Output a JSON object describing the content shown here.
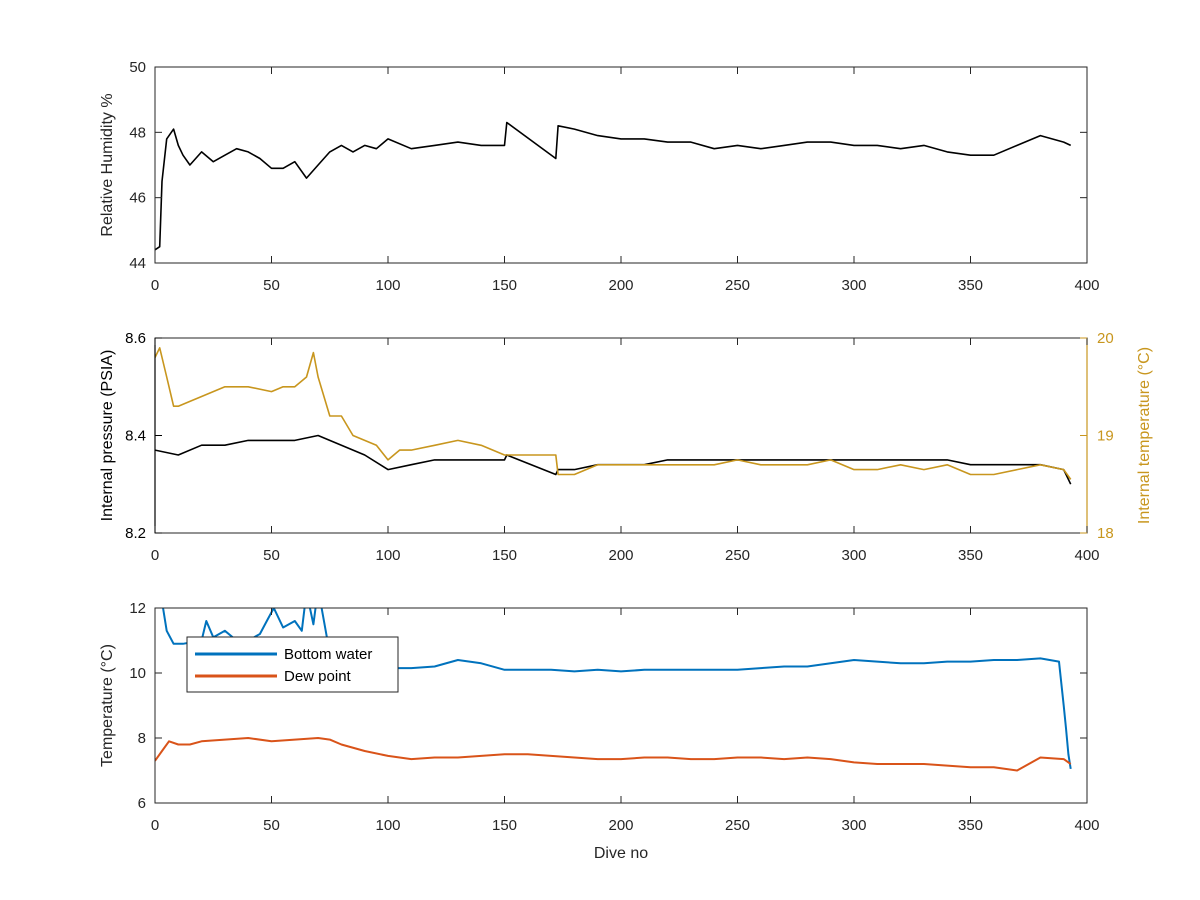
{
  "chart_data": [
    {
      "type": "line",
      "panel": "top",
      "ylabel": "Relative Humidity %",
      "xlim": [
        0,
        400
      ],
      "ylim": [
        44,
        50
      ],
      "xticks": [
        0,
        50,
        100,
        150,
        200,
        250,
        300,
        350,
        400
      ],
      "yticks": [
        44,
        46,
        48,
        50
      ],
      "grid": false,
      "series": [
        {
          "color": "#000000",
          "x": [
            0,
            2,
            3,
            5,
            8,
            10,
            12,
            15,
            20,
            25,
            30,
            35,
            40,
            45,
            50,
            55,
            60,
            65,
            70,
            75,
            80,
            85,
            90,
            95,
            100,
            110,
            120,
            130,
            140,
            150,
            151,
            172,
            173,
            180,
            190,
            200,
            210,
            220,
            230,
            240,
            250,
            260,
            270,
            280,
            290,
            300,
            310,
            320,
            330,
            340,
            350,
            360,
            370,
            380,
            390,
            393
          ],
          "y": [
            44.4,
            44.5,
            46.5,
            47.8,
            48.1,
            47.6,
            47.3,
            47.0,
            47.4,
            47.1,
            47.3,
            47.5,
            47.4,
            47.2,
            46.9,
            46.9,
            47.1,
            46.6,
            47.0,
            47.4,
            47.6,
            47.4,
            47.6,
            47.5,
            47.8,
            47.5,
            47.6,
            47.7,
            47.6,
            47.6,
            48.3,
            47.2,
            48.2,
            48.1,
            47.9,
            47.8,
            47.8,
            47.7,
            47.7,
            47.5,
            47.6,
            47.5,
            47.6,
            47.7,
            47.7,
            47.6,
            47.6,
            47.5,
            47.6,
            47.4,
            47.3,
            47.3,
            47.6,
            47.9,
            47.7,
            47.6
          ]
        }
      ]
    },
    {
      "type": "line",
      "panel": "middle",
      "ylabel": "Internal pressure (PSIA)",
      "ylabel_right": "Internal temperature (°C)",
      "xlim": [
        0,
        400
      ],
      "ylim": [
        8.2,
        8.6
      ],
      "ylim_right": [
        18,
        20
      ],
      "xticks": [
        0,
        50,
        100,
        150,
        200,
        250,
        300,
        350,
        400
      ],
      "yticks": [
        8.2,
        8.4,
        8.6
      ],
      "yticks_right": [
        18,
        19,
        20
      ],
      "grid": false,
      "series": [
        {
          "axis": "left",
          "color": "#000000",
          "x": [
            0,
            10,
            20,
            30,
            40,
            50,
            60,
            70,
            80,
            90,
            100,
            110,
            120,
            130,
            140,
            150,
            151,
            172,
            173,
            180,
            190,
            200,
            210,
            220,
            230,
            240,
            250,
            260,
            270,
            280,
            290,
            300,
            310,
            320,
            330,
            340,
            350,
            360,
            370,
            380,
            390,
            393
          ],
          "y": [
            8.37,
            8.36,
            8.38,
            8.38,
            8.39,
            8.39,
            8.39,
            8.4,
            8.38,
            8.36,
            8.33,
            8.34,
            8.35,
            8.35,
            8.35,
            8.35,
            8.36,
            8.32,
            8.33,
            8.33,
            8.34,
            8.34,
            8.34,
            8.35,
            8.35,
            8.35,
            8.35,
            8.35,
            8.35,
            8.35,
            8.35,
            8.35,
            8.35,
            8.35,
            8.35,
            8.35,
            8.34,
            8.34,
            8.34,
            8.34,
            8.33,
            8.3
          ]
        },
        {
          "axis": "right",
          "color": "#C8961E",
          "x": [
            0,
            2,
            5,
            8,
            10,
            15,
            20,
            30,
            40,
            50,
            55,
            60,
            65,
            68,
            70,
            75,
            80,
            85,
            90,
            95,
            100,
            105,
            110,
            120,
            130,
            140,
            150,
            151,
            172,
            173,
            180,
            190,
            200,
            210,
            220,
            230,
            240,
            250,
            260,
            270,
            280,
            290,
            300,
            310,
            320,
            330,
            340,
            350,
            360,
            370,
            380,
            390,
            393
          ],
          "y": [
            19.8,
            19.9,
            19.6,
            19.3,
            19.3,
            19.35,
            19.4,
            19.5,
            19.5,
            19.45,
            19.5,
            19.5,
            19.6,
            19.85,
            19.6,
            19.2,
            19.2,
            19.0,
            18.95,
            18.9,
            18.75,
            18.85,
            18.85,
            18.9,
            18.95,
            18.9,
            18.8,
            18.8,
            18.8,
            18.6,
            18.6,
            18.7,
            18.7,
            18.7,
            18.7,
            18.7,
            18.7,
            18.75,
            18.7,
            18.7,
            18.7,
            18.75,
            18.65,
            18.65,
            18.7,
            18.65,
            18.7,
            18.6,
            18.6,
            18.65,
            18.7,
            18.65,
            18.55
          ]
        }
      ]
    },
    {
      "type": "line",
      "panel": "bottom",
      "xlabel": "Dive no",
      "ylabel": "Temperature (°C)",
      "xlim": [
        0,
        400
      ],
      "ylim": [
        6,
        12
      ],
      "xticks": [
        0,
        50,
        100,
        150,
        200,
        250,
        300,
        350,
        400
      ],
      "yticks": [
        6,
        8,
        10,
        12
      ],
      "grid": false,
      "legend": "top-left",
      "series": [
        {
          "name": "Bottom water",
          "color": "#0072BD",
          "x": [
            3,
            5,
            8,
            12,
            16,
            20,
            22,
            25,
            30,
            35,
            40,
            45,
            48,
            51,
            55,
            60,
            63,
            65,
            68,
            70,
            75,
            80,
            90,
            100,
            110,
            120,
            130,
            140,
            150,
            160,
            170,
            180,
            190,
            200,
            210,
            220,
            230,
            240,
            250,
            260,
            270,
            280,
            290,
            300,
            310,
            320,
            330,
            340,
            350,
            360,
            370,
            380,
            388,
            390,
            391,
            392,
            393
          ],
          "y": [
            12.2,
            11.3,
            10.9,
            10.9,
            10.95,
            11.0,
            11.6,
            11.1,
            11.3,
            11.0,
            11.0,
            11.2,
            11.6,
            12.0,
            11.4,
            11.6,
            11.3,
            12.5,
            11.5,
            12.6,
            10.6,
            10.3,
            10.2,
            10.15,
            10.15,
            10.2,
            10.4,
            10.3,
            10.1,
            10.1,
            10.1,
            10.05,
            10.1,
            10.05,
            10.1,
            10.1,
            10.1,
            10.1,
            10.1,
            10.15,
            10.2,
            10.2,
            10.3,
            10.4,
            10.35,
            10.3,
            10.3,
            10.35,
            10.35,
            10.4,
            10.4,
            10.45,
            10.35,
            9.0,
            8.3,
            7.5,
            7.05
          ]
        },
        {
          "name": "Dew point",
          "color": "#D95319",
          "x": [
            0,
            3,
            6,
            10,
            15,
            20,
            30,
            40,
            50,
            60,
            70,
            75,
            80,
            90,
            100,
            110,
            120,
            130,
            140,
            150,
            160,
            170,
            180,
            190,
            200,
            210,
            220,
            230,
            240,
            250,
            260,
            270,
            280,
            290,
            300,
            310,
            320,
            330,
            340,
            350,
            360,
            370,
            380,
            390,
            393
          ],
          "y": [
            7.3,
            7.6,
            7.9,
            7.8,
            7.8,
            7.9,
            7.95,
            8.0,
            7.9,
            7.95,
            8.0,
            7.95,
            7.8,
            7.6,
            7.45,
            7.35,
            7.4,
            7.4,
            7.45,
            7.5,
            7.5,
            7.45,
            7.4,
            7.35,
            7.35,
            7.4,
            7.4,
            7.35,
            7.35,
            7.4,
            7.4,
            7.35,
            7.4,
            7.35,
            7.25,
            7.2,
            7.2,
            7.2,
            7.15,
            7.1,
            7.1,
            7.0,
            7.4,
            7.35,
            7.2
          ]
        }
      ]
    }
  ]
}
